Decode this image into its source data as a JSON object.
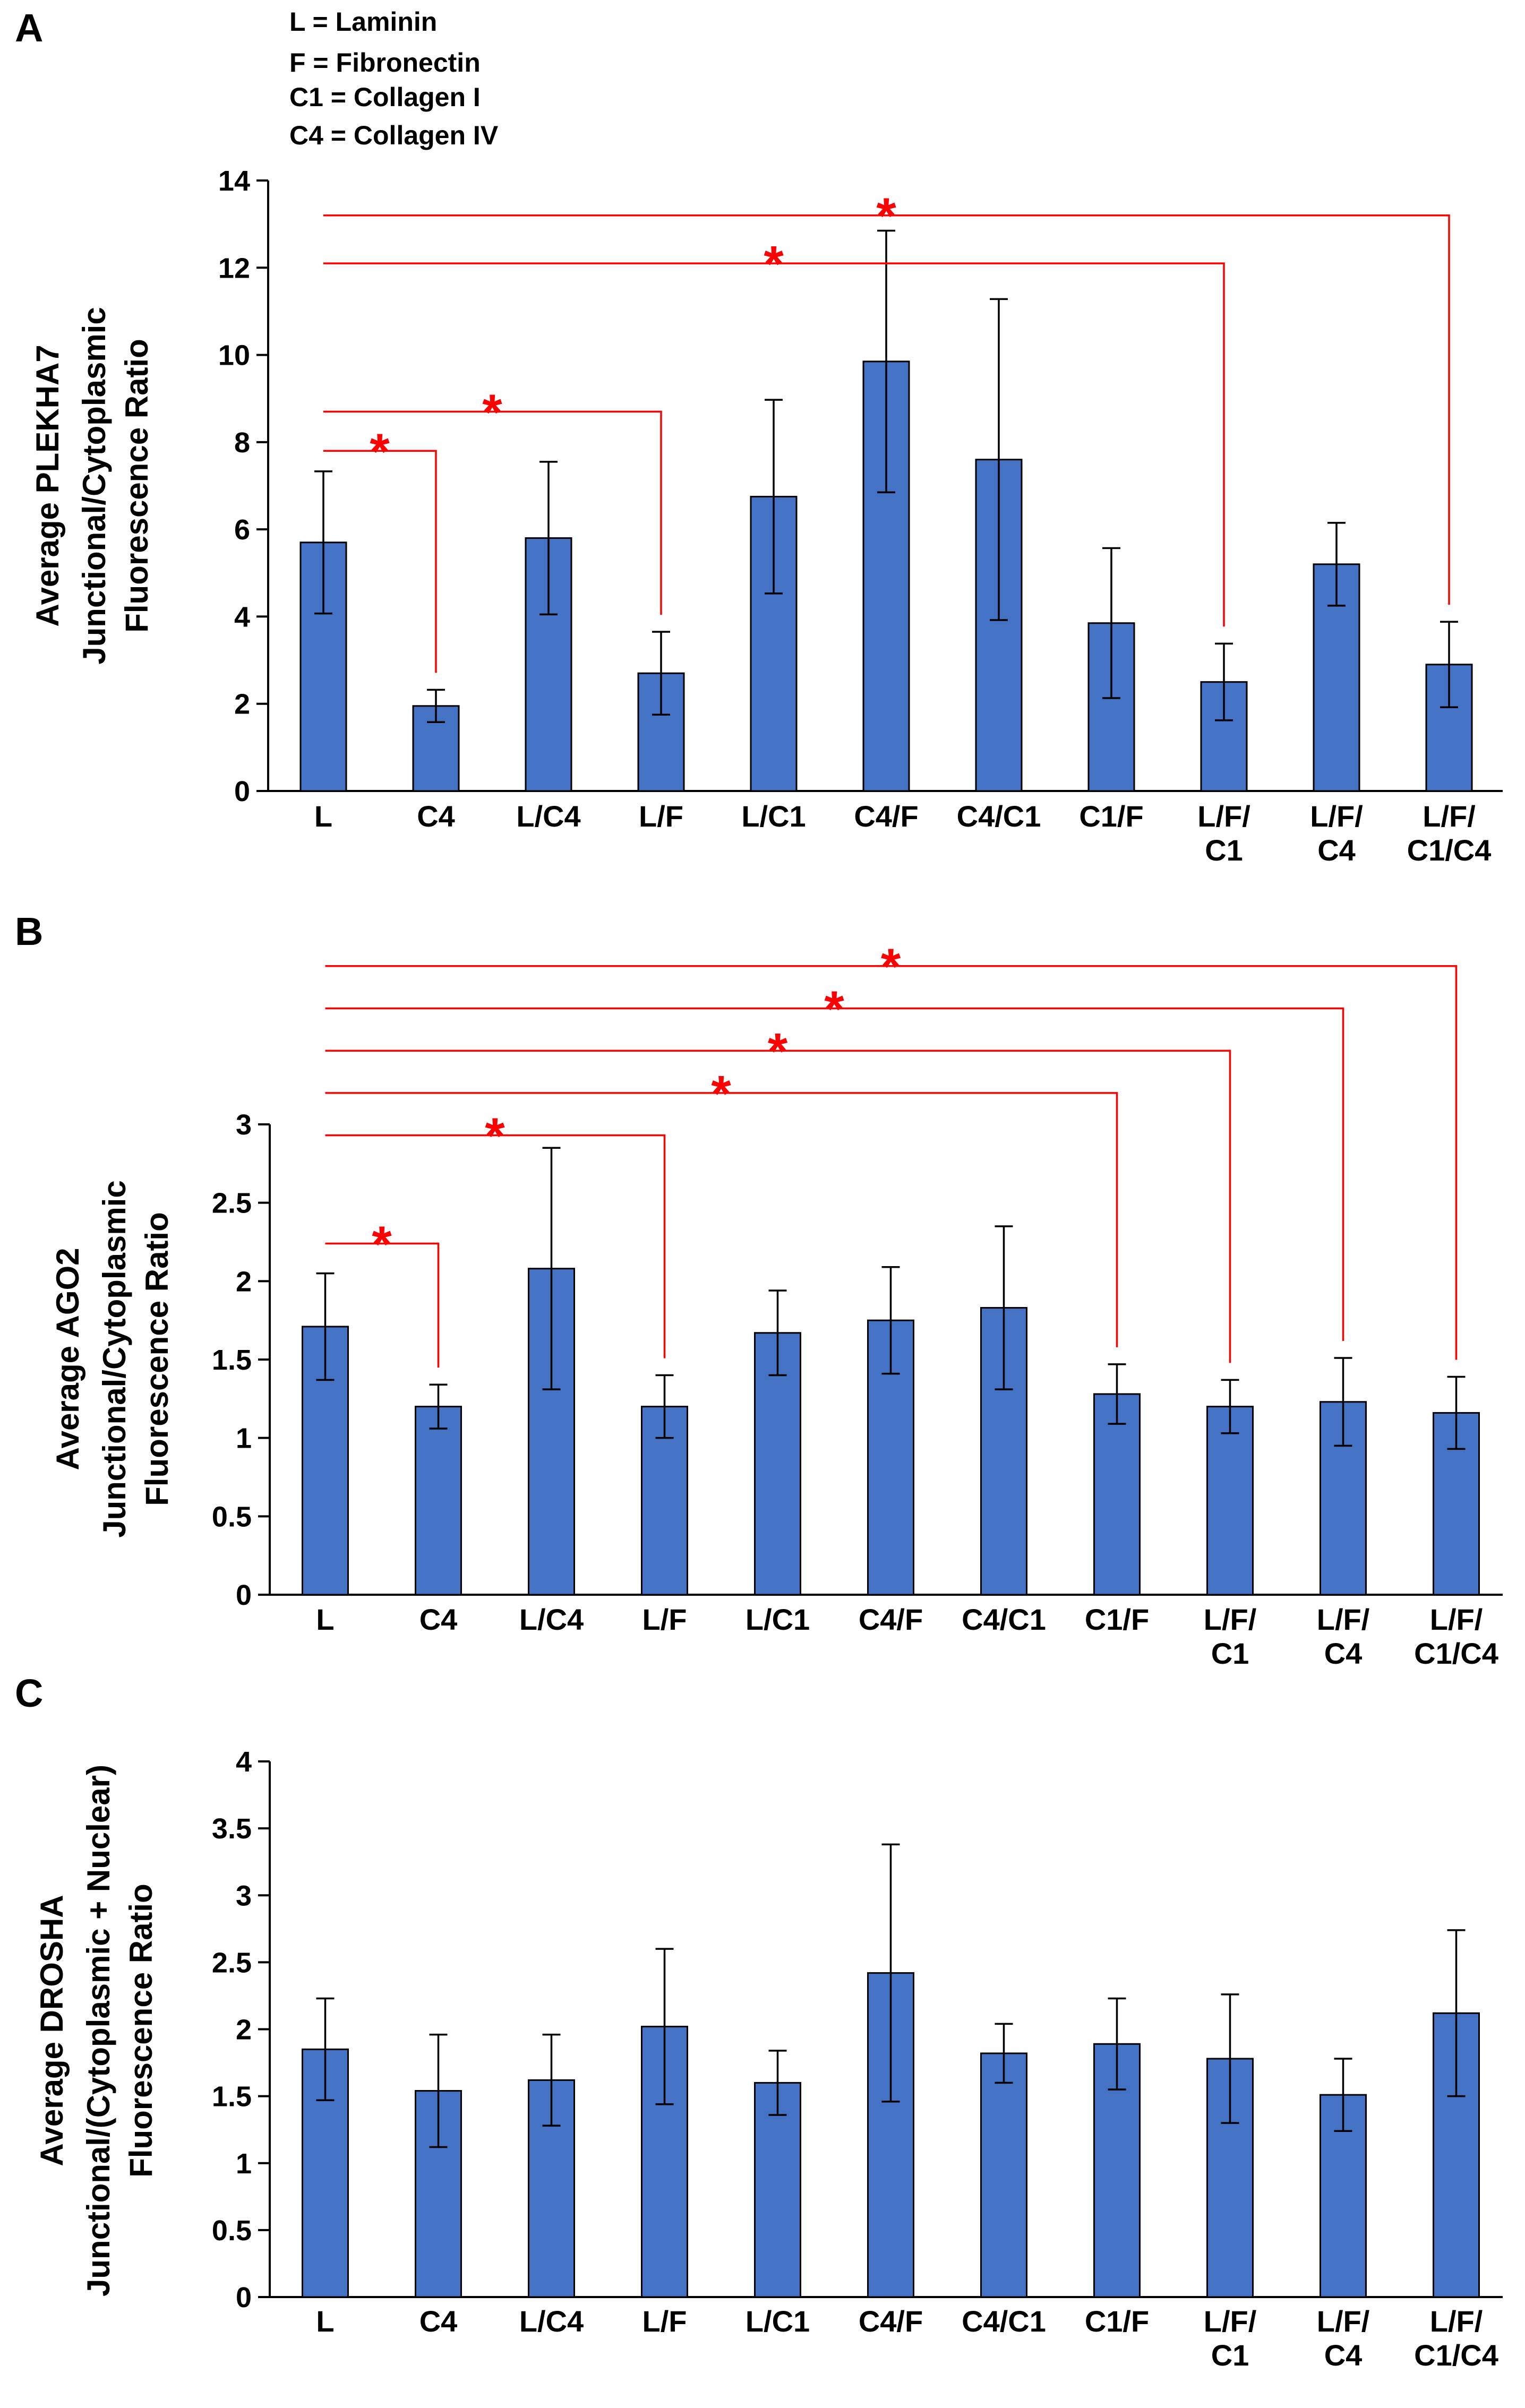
{
  "legend": [
    "L  = Laminin",
    "F  = Fibronectin",
    "C1 = Collagen I",
    "C4 = Collagen IV"
  ],
  "chart_data": [
    {
      "type": "bar",
      "panel": "A",
      "ylabel": [
        "Average PLEKHA7",
        "Junctional/Cytoplasmic",
        "Fluorescence Ratio"
      ],
      "categories": [
        [
          "L"
        ],
        [
          "C4"
        ],
        [
          "L/C4"
        ],
        [
          "L/F"
        ],
        [
          "L/C1"
        ],
        [
          "C4/F"
        ],
        [
          "C4/C1"
        ],
        [
          "C1/F"
        ],
        [
          "L/F/",
          "C1"
        ],
        [
          "L/F/",
          "C4"
        ],
        [
          "L/F/",
          "C1/C4"
        ]
      ],
      "values": [
        5.7,
        1.95,
        5.8,
        2.7,
        6.75,
        9.85,
        7.6,
        3.85,
        2.5,
        5.2,
        2.9
      ],
      "errors": [
        1.63,
        0.37,
        1.75,
        0.95,
        2.22,
        3.0,
        3.68,
        1.72,
        0.88,
        0.95,
        0.98
      ],
      "ylim": [
        0,
        14
      ],
      "yticks": [
        "0",
        "2",
        "4",
        "6",
        "8",
        "10",
        "12",
        "14"
      ],
      "ytick_values": [
        0,
        2,
        4,
        6,
        8,
        10,
        12,
        14
      ],
      "significance": [
        {
          "from": 0,
          "to": 1,
          "level": 7.8,
          "label": "*"
        },
        {
          "from": 0,
          "to": 3,
          "level": 8.7,
          "label": "*"
        },
        {
          "from": 0,
          "to": 8,
          "level": 12.1,
          "label": "*"
        },
        {
          "from": 0,
          "to": 10,
          "level": 13.2,
          "label": "*"
        }
      ]
    },
    {
      "type": "bar",
      "panel": "B",
      "ylabel": [
        "Average AGO2",
        "Junctional/Cytoplasmic",
        "Fluorescence Ratio"
      ],
      "categories": [
        [
          "L"
        ],
        [
          "C4"
        ],
        [
          "L/C4"
        ],
        [
          "L/F"
        ],
        [
          "L/C1"
        ],
        [
          "C4/F"
        ],
        [
          "C4/C1"
        ],
        [
          "C1/F"
        ],
        [
          "L/F/",
          "C1"
        ],
        [
          "L/F/",
          "C4"
        ],
        [
          "L/F/",
          "C1/C4"
        ]
      ],
      "values": [
        1.71,
        1.2,
        2.08,
        1.2,
        1.67,
        1.75,
        1.83,
        1.28,
        1.2,
        1.23,
        1.16
      ],
      "errors": [
        0.34,
        0.14,
        0.77,
        0.2,
        0.27,
        0.34,
        0.52,
        0.19,
        0.17,
        0.28,
        0.23
      ],
      "ylim": [
        0,
        3
      ],
      "yticks": [
        "0",
        "0.5",
        "1",
        "1.5",
        "2",
        "2.5",
        "3"
      ],
      "ytick_values": [
        0,
        0.5,
        1,
        1.5,
        2,
        2.5,
        3
      ],
      "significance": [
        {
          "from": 0,
          "to": 1,
          "level": 2.24,
          "label": "*"
        },
        {
          "from": 0,
          "to": 3,
          "level": 2.93,
          "label": "*"
        },
        {
          "from": 0,
          "to": 7,
          "level": 3.2,
          "label": "*"
        },
        {
          "from": 0,
          "to": 8,
          "level": 3.47,
          "label": "*"
        },
        {
          "from": 0,
          "to": 9,
          "level": 3.74,
          "label": "*"
        },
        {
          "from": 0,
          "to": 10,
          "level": 4.01,
          "label": "*"
        }
      ]
    },
    {
      "type": "bar",
      "panel": "C",
      "ylabel": [
        "Average DROSHA",
        "Junctional/(Cytoplasmic + Nuclear)",
        "Fluorescence Ratio"
      ],
      "categories": [
        [
          "L"
        ],
        [
          "C4"
        ],
        [
          "L/C4"
        ],
        [
          "L/F"
        ],
        [
          "L/C1"
        ],
        [
          "C4/F"
        ],
        [
          "C4/C1"
        ],
        [
          "C1/F"
        ],
        [
          "L/F/",
          "C1"
        ],
        [
          "L/F/",
          "C4"
        ],
        [
          "L/F/",
          "C1/C4"
        ]
      ],
      "values": [
        1.85,
        1.54,
        1.62,
        2.02,
        1.6,
        2.42,
        1.82,
        1.89,
        1.78,
        1.51,
        2.12
      ],
      "errors": [
        0.38,
        0.42,
        0.34,
        0.58,
        0.24,
        0.96,
        0.22,
        0.34,
        0.48,
        0.27,
        0.62
      ],
      "ylim": [
        0,
        4
      ],
      "yticks": [
        "0",
        "0.5",
        "1",
        "1.5",
        "2",
        "2.5",
        "3",
        "3.5",
        "4"
      ],
      "ytick_values": [
        0,
        0.5,
        1,
        1.5,
        2,
        2.5,
        3,
        3.5,
        4
      ],
      "significance": []
    }
  ]
}
